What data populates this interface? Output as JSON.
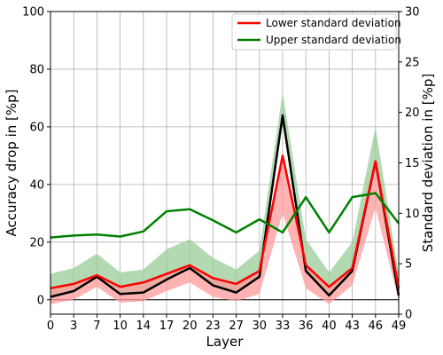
{
  "chart_data": {
    "type": "line",
    "xlabel": "Layer",
    "ylabel_left": "Accuracy drop in [%p]",
    "ylabel_right": "Standard deviation in [%p]",
    "x_categories": [
      "0",
      "3",
      "7",
      "10",
      "14",
      "17",
      "20",
      "23",
      "27",
      "30",
      "33",
      "36",
      "40",
      "43",
      "46",
      "49"
    ],
    "ylim_left": [
      -5,
      100
    ],
    "yticks_left": [
      0,
      20,
      40,
      60,
      80,
      100
    ],
    "ylim_right": [
      0,
      30
    ],
    "yticks_right": [
      0,
      5,
      10,
      15,
      20,
      25,
      30
    ],
    "grid": true,
    "zero_line": true,
    "legend_position": "top-right",
    "mean": {
      "color": "#000000",
      "values": [
        1,
        3,
        8,
        2,
        2.5,
        7,
        11,
        5,
        2.5,
        8,
        64,
        10,
        1.5,
        10,
        48,
        1.5
      ]
    },
    "lower_band": {
      "color": "#ff9999",
      "upper": [
        4,
        5.5,
        8.5,
        4.5,
        6,
        9,
        12,
        7.5,
        5.5,
        10,
        50,
        12,
        4.5,
        11,
        48,
        4
      ],
      "lower": [
        -1.5,
        0,
        4.5,
        -1,
        -0.5,
        3,
        6,
        1,
        -0.5,
        2,
        30,
        4,
        -1.5,
        5,
        32,
        -0.5
      ]
    },
    "upper_band": {
      "color": "#99cc99",
      "upper": [
        9,
        11,
        16,
        9.5,
        10.5,
        17.5,
        21,
        14.5,
        10.5,
        17,
        72,
        21,
        9.5,
        20,
        60,
        9
      ],
      "lower": [
        1,
        3,
        8,
        2,
        2.5,
        7,
        11,
        5,
        2.5,
        8,
        64,
        10,
        1.5,
        10,
        48,
        1.5
      ]
    },
    "series": [
      {
        "name": "Lower standard deviation",
        "axis": "left",
        "color": "#ff0000",
        "values": [
          4,
          5.5,
          8.5,
          4.5,
          6,
          9,
          12,
          7.5,
          5.5,
          10,
          50,
          12,
          4.5,
          11,
          48,
          4
        ]
      },
      {
        "name": "Upper standard deviation",
        "axis": "right",
        "color": "#008000",
        "values": [
          7.6,
          7.8,
          7.9,
          7.7,
          8.2,
          10.2,
          10.4,
          9.3,
          8.1,
          9.4,
          8.1,
          11.6,
          8.1,
          11.6,
          12,
          9.0
        ]
      }
    ]
  }
}
